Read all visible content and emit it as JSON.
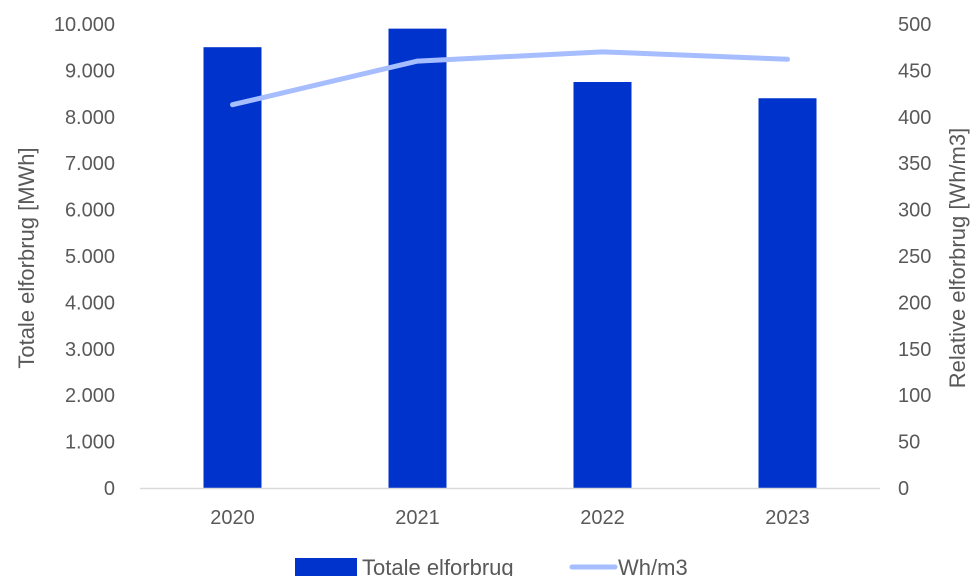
{
  "chart_data": {
    "type": "bar",
    "categories": [
      "2020",
      "2021",
      "2022",
      "2023"
    ],
    "series": [
      {
        "name": "Totale elforbrug",
        "type": "bar",
        "axis": "left",
        "values": [
          9500,
          9900,
          8750,
          8400
        ],
        "color": "#0033CC"
      },
      {
        "name": "Wh/m3",
        "type": "line",
        "axis": "right",
        "values": [
          413,
          460,
          470,
          462
        ],
        "color": "#A6BDFF"
      }
    ],
    "yleft": {
      "label": "Totale elforbrug [MWh]",
      "ticks": [
        "0",
        "1.000",
        "2.000",
        "3.000",
        "4.000",
        "5.000",
        "6.000",
        "7.000",
        "8.000",
        "9.000",
        "10.000"
      ],
      "min": 0,
      "max": 10000
    },
    "yright": {
      "label": "Relative elforbrug [Wh/m3]",
      "ticks": [
        "0",
        "50",
        "100",
        "150",
        "200",
        "250",
        "300",
        "350",
        "400",
        "450",
        "500"
      ],
      "min": 0,
      "max": 500
    },
    "grid": false,
    "legend_position": "bottom",
    "colors": {
      "text": "#595959",
      "axis_line": "#D9D9D9"
    }
  }
}
